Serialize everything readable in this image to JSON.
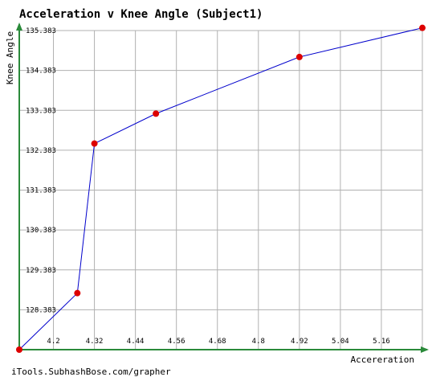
{
  "chart_data": {
    "type": "line",
    "title": "Acceleration v Knee Angle (Subject1)",
    "xlabel": "Accereration",
    "ylabel": "Knee Angle",
    "x_ticks": [
      "4.2",
      "4.32",
      "4.44",
      "4.56",
      "4.68",
      "4.8",
      "4.92",
      "5.04",
      "5.16"
    ],
    "y_ticks": [
      "128.383",
      "129.383",
      "130.383",
      "131.383",
      "132.383",
      "133.383",
      "134.383",
      "135.383"
    ],
    "xlim": [
      4.1,
      5.28
    ],
    "ylim": [
      127.383,
      135.383
    ],
    "grid": true,
    "series": [
      {
        "color": "#0000cc",
        "marker_color": "#dd0000",
        "points": [
          {
            "x": 4.1,
            "y": 127.383
          },
          {
            "x": 4.27,
            "y": 128.8
          },
          {
            "x": 4.32,
            "y": 132.55
          },
          {
            "x": 4.5,
            "y": 133.3
          },
          {
            "x": 4.92,
            "y": 134.72
          },
          {
            "x": 5.28,
            "y": 135.45
          }
        ]
      }
    ]
  },
  "colors": {
    "axis": "#2a8a3a",
    "grid": "#b0b0b0",
    "line": "#0000cc",
    "marker": "#dd0000"
  },
  "footer": "iTools.SubhashBose.com/grapher"
}
